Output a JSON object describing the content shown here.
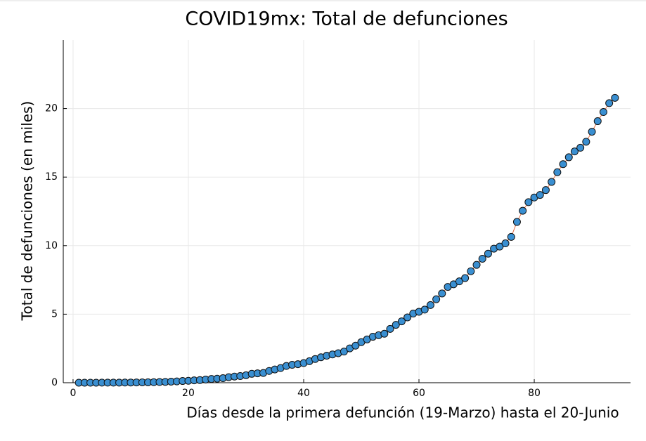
{
  "chart_data": {
    "type": "scatter-line",
    "title": "COVID19mx: Total de defunciones",
    "x_label": "Días desde la primera defunción (19-Marzo) hasta el 20-Junio",
    "y_label": "Total de defunciones (en miles)",
    "x": [
      1,
      2,
      3,
      4,
      5,
      6,
      7,
      8,
      9,
      10,
      11,
      12,
      13,
      14,
      15,
      16,
      17,
      18,
      19,
      20,
      21,
      22,
      23,
      24,
      25,
      26,
      27,
      28,
      29,
      30,
      31,
      32,
      33,
      34,
      35,
      36,
      37,
      38,
      39,
      40,
      41,
      42,
      43,
      44,
      45,
      46,
      47,
      48,
      49,
      50,
      51,
      52,
      53,
      54,
      55,
      56,
      57,
      58,
      59,
      60,
      61,
      62,
      63,
      64,
      65,
      66,
      67,
      68,
      69,
      70,
      71,
      72,
      73,
      74,
      75,
      76,
      77,
      78,
      79,
      80,
      81,
      82,
      83,
      84,
      85,
      86,
      87,
      88,
      89,
      90,
      91,
      92,
      93,
      94
    ],
    "series": [
      {
        "color": "#3a8fd1",
        "line_color": "#e26f46",
        "values": [
          0.001,
          0.001,
          0.002,
          0.002,
          0.004,
          0.005,
          0.006,
          0.008,
          0.012,
          0.016,
          0.02,
          0.028,
          0.029,
          0.037,
          0.05,
          0.06,
          0.079,
          0.094,
          0.125,
          0.141,
          0.174,
          0.194,
          0.233,
          0.273,
          0.296,
          0.332,
          0.406,
          0.449,
          0.486,
          0.546,
          0.65,
          0.686,
          0.712,
          0.857,
          0.97,
          1.069,
          1.221,
          1.305,
          1.351,
          1.434,
          1.569,
          1.732,
          1.859,
          1.972,
          2.061,
          2.154,
          2.271,
          2.507,
          2.704,
          2.961,
          3.16,
          3.353,
          3.465,
          3.573,
          3.926,
          4.22,
          4.477,
          4.767,
          5.045,
          5.177,
          5.332,
          5.666,
          6.09,
          6.51,
          6.989,
          7.179,
          7.394,
          7.633,
          8.134,
          8.597,
          9.044,
          9.415,
          9.779,
          9.93,
          10.167,
          10.637,
          11.729,
          12.545,
          13.17,
          13.511,
          13.699,
          14.053,
          14.649,
          15.357,
          15.944,
          16.448,
          16.872,
          17.141,
          17.58,
          18.31,
          19.08,
          19.747,
          20.394,
          20.781
        ]
      }
    ],
    "xlim": [
      -1.7,
      96.7
    ],
    "ylim": [
      0,
      25
    ],
    "xticks": [
      0,
      20,
      40,
      60,
      80
    ],
    "yticks": [
      0,
      5,
      10,
      15,
      20
    ],
    "grid": true
  }
}
